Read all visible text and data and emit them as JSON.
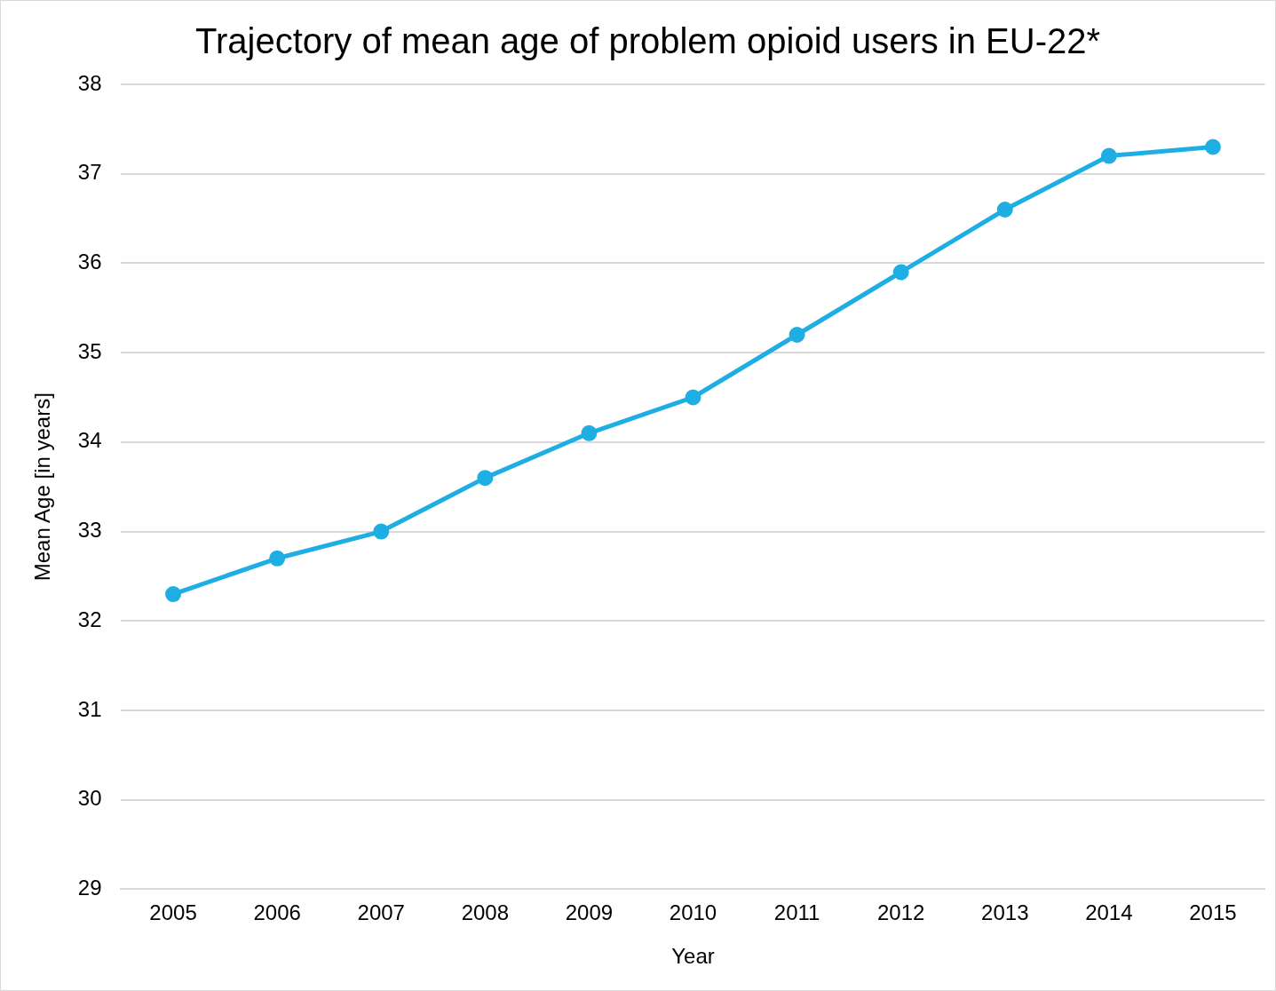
{
  "chart_data": {
    "type": "line",
    "title": "Trajectory of mean age of problem opioid users in EU-22*",
    "xlabel": "Year",
    "ylabel": "Mean Age [in years]",
    "categories": [
      "2005",
      "2006",
      "2007",
      "2008",
      "2009",
      "2010",
      "2011",
      "2012",
      "2013",
      "2014",
      "2015"
    ],
    "series": [
      {
        "color": "#1eaee3",
        "values": [
          32.3,
          32.7,
          33.0,
          33.6,
          34.1,
          34.5,
          35.2,
          35.9,
          36.6,
          37.2,
          37.3
        ]
      }
    ],
    "ylim": [
      29,
      38
    ],
    "yticks": [
      29,
      30,
      31,
      32,
      33,
      34,
      35,
      36,
      37,
      38
    ],
    "grid": "y",
    "legend": false,
    "marker": "circle",
    "line_style": "solid"
  }
}
